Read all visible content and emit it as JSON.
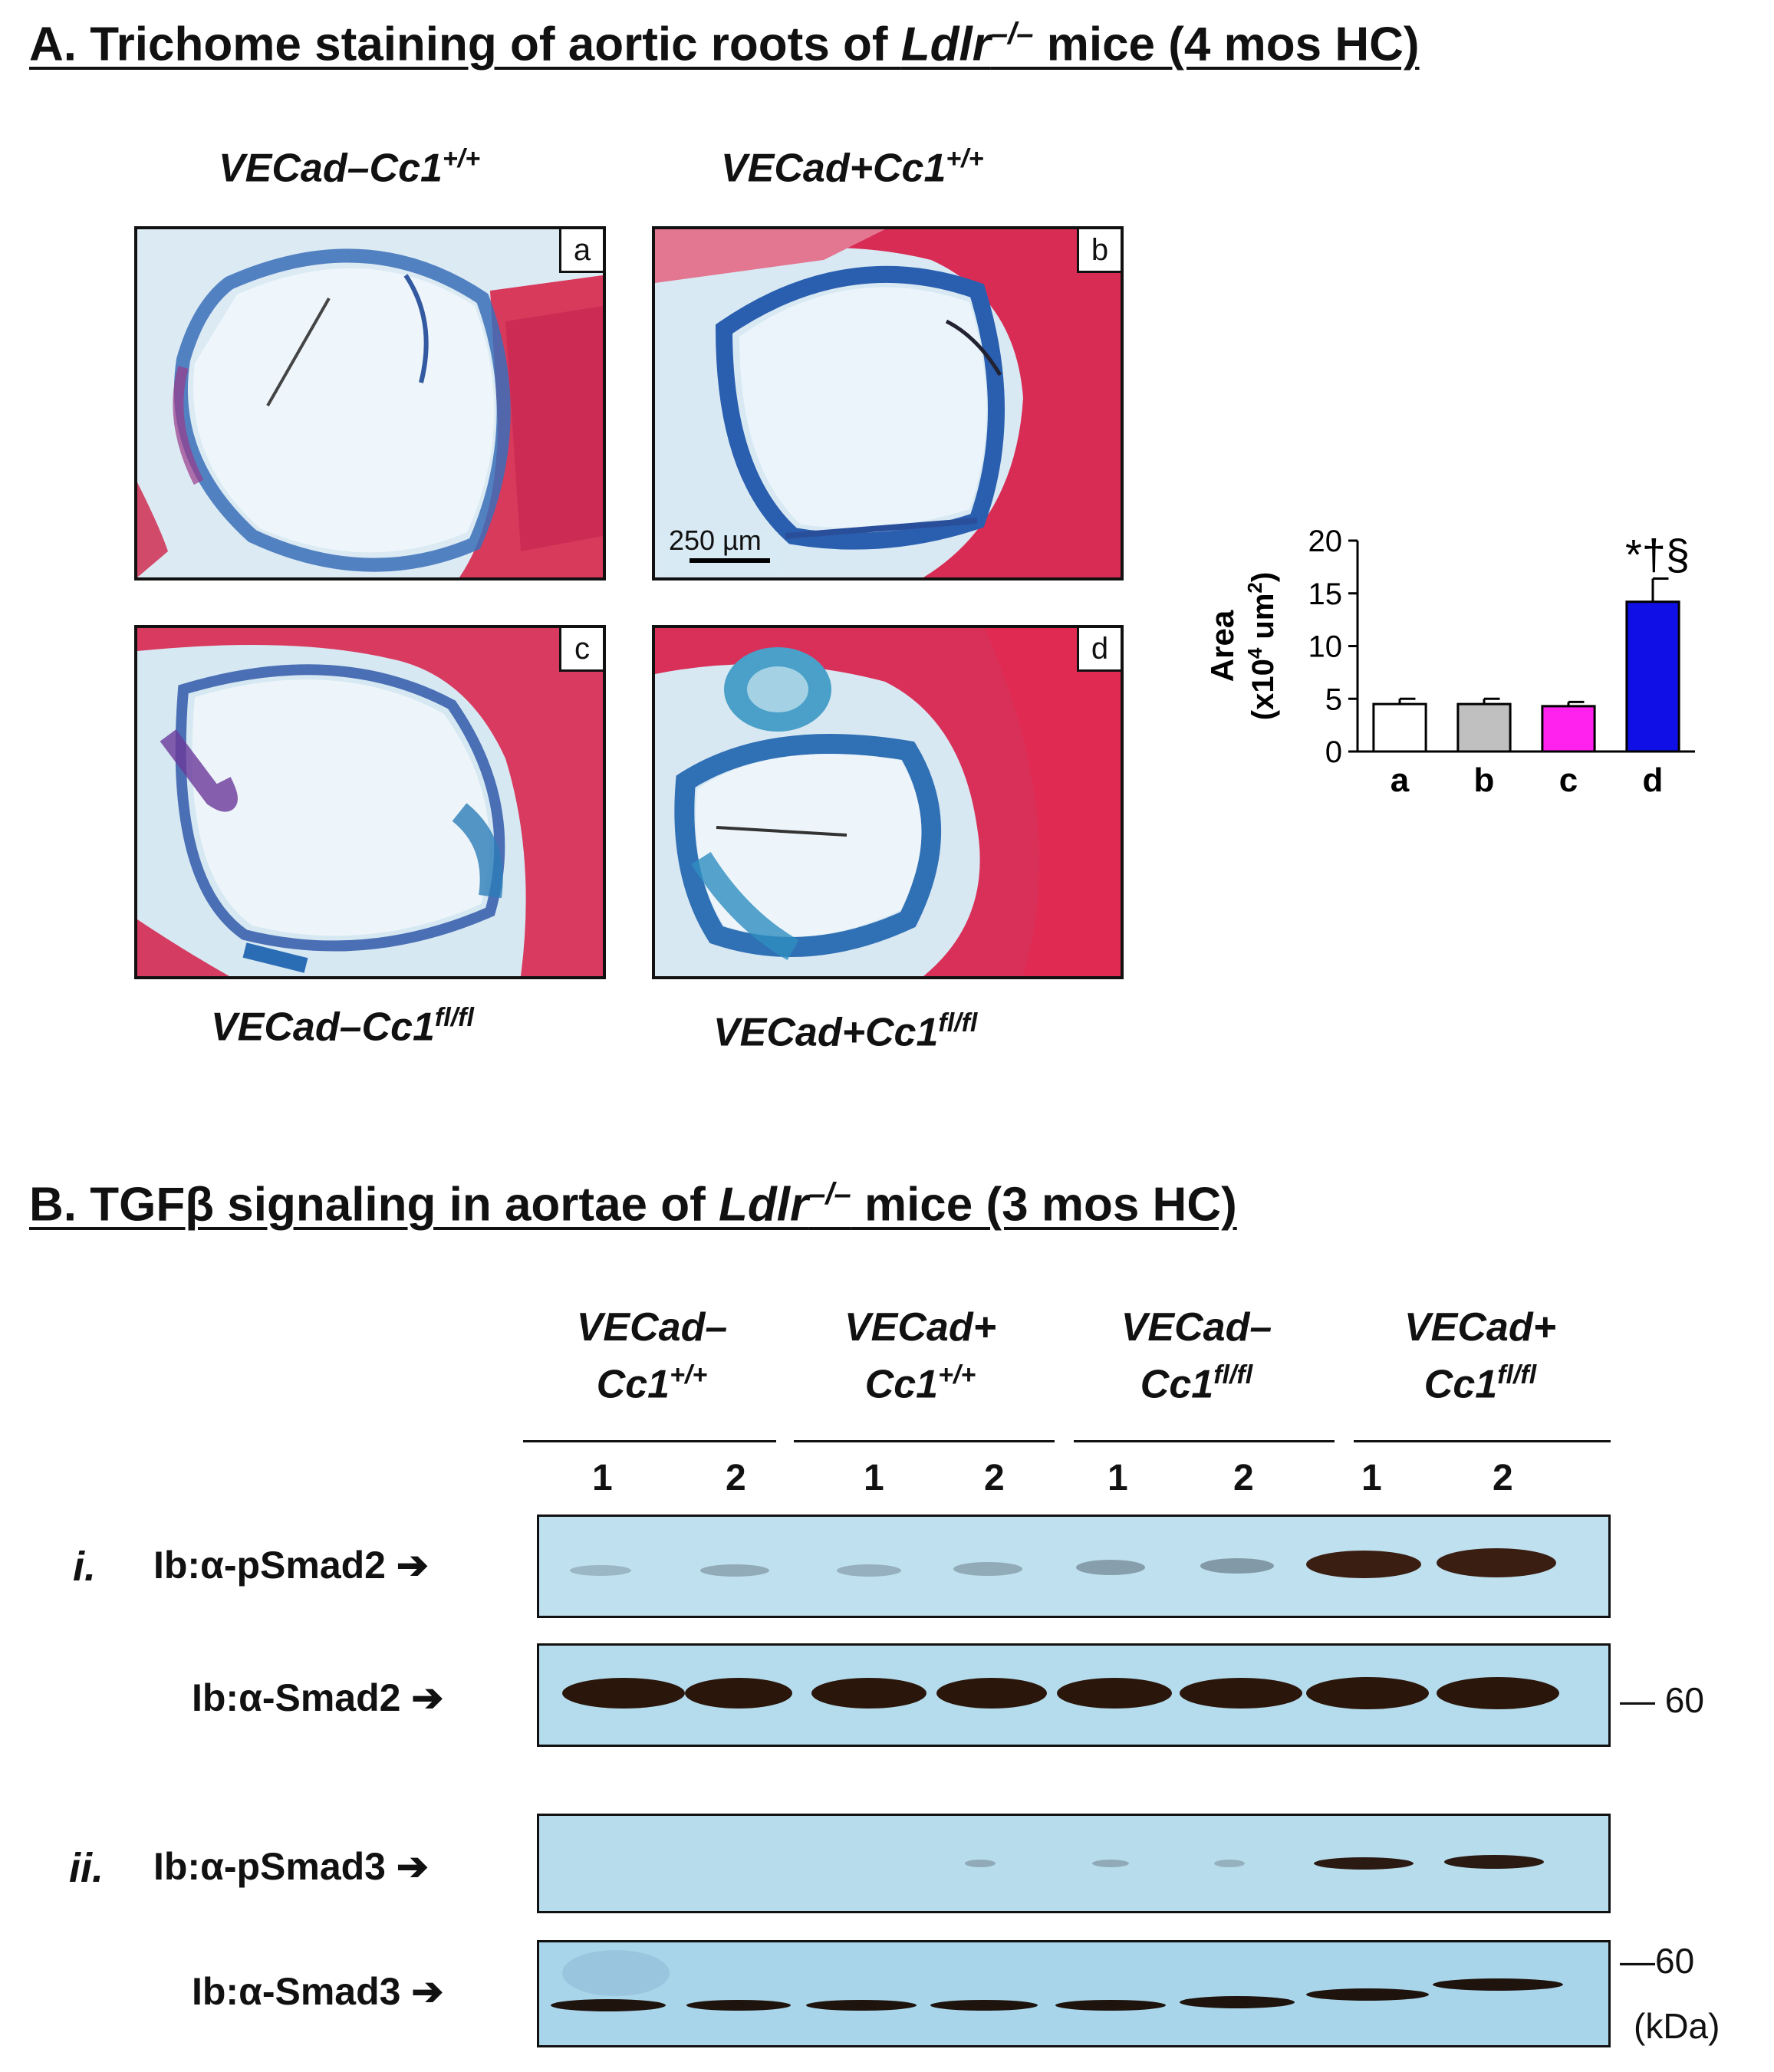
{
  "sectionA": {
    "title_pre": "A. Trichome staining of aortic roots of ",
    "title_gene": "Ldlr",
    "title_sup": "–/–",
    "title_post": " mice (4 mos HC)",
    "genotypes": [
      {
        "base": "VECad–Cc1",
        "sup": "+/+"
      },
      {
        "base": "VECad+Cc1",
        "sup": "+/+"
      },
      {
        "base": "VECad–Cc1",
        "sup": "fl/fl"
      },
      {
        "base": "VECad+Cc1",
        "sup": "fl/fl"
      }
    ],
    "panel_labels": [
      "a",
      "b",
      "c",
      "d"
    ],
    "scale_bar": "250 µm"
  },
  "chart_data": {
    "type": "bar",
    "categories": [
      "a",
      "b",
      "c",
      "d"
    ],
    "values": [
      4.5,
      4.5,
      4.3,
      14.2
    ],
    "errors": [
      0.5,
      0.5,
      0.4,
      2.2
    ],
    "colors": [
      "#ffffff",
      "#c0c0c0",
      "#ff22ee",
      "#1010e6"
    ],
    "ylabel_line1": "Area",
    "ylabel_line2_pre": "(x10",
    "ylabel_line2_sup": "4",
    "ylabel_line2_mid": " um",
    "ylabel_line2_sup2": "2",
    "ylabel_line2_post": ")",
    "ylim": [
      0,
      20
    ],
    "yticks": [
      "0",
      "5",
      "10",
      "15",
      "20"
    ],
    "annotation": "*†§"
  },
  "sectionB": {
    "title_pre": "B. TGFβ signaling in aortae of ",
    "title_gene": "Ldlr",
    "title_sup": "–/–",
    "title_post": " mice (3 mos HC)",
    "groups": [
      {
        "line1": "VECad–",
        "line2": "Cc1",
        "sup": "+/+"
      },
      {
        "line1": "VECad+",
        "line2": "Cc1",
        "sup": "+/+"
      },
      {
        "line1": "VECad–",
        "line2": "Cc1",
        "sup": "fl/fl"
      },
      {
        "line1": "VECad+",
        "line2": "Cc1",
        "sup": "fl/fl"
      }
    ],
    "lanes": [
      "1",
      "2",
      "1",
      "2",
      "1",
      "2",
      "1",
      "2"
    ],
    "blots": [
      {
        "roman": "i.",
        "label": "Ib:α-pSmad2 ➔"
      },
      {
        "roman": "",
        "label": "Ib:α-Smad2 ➔"
      },
      {
        "roman": "ii.",
        "label": "Ib:α-pSmad3 ➔"
      },
      {
        "roman": "",
        "label": "Ib:α-Smad3 ➔"
      }
    ],
    "mw_smad2": "— 60",
    "mw_smad3": "—60",
    "mw_unit": "(kDa)"
  }
}
